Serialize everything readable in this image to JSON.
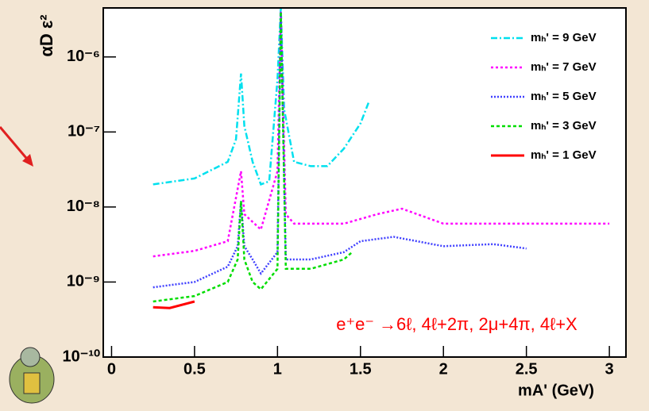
{
  "chart_data": {
    "type": "line",
    "ylabel": "αD ε²",
    "xlabel": "mA' (GeV)",
    "annotation": "e⁺e⁻ →6ℓ, 4ℓ+2π, 2μ+4π, 4ℓ+X",
    "ylog": true,
    "xlim": [
      -0.05,
      3.1
    ],
    "ylim": [
      1e-10,
      4.5e-06
    ],
    "xticks": [
      0,
      0.5,
      1,
      1.5,
      2,
      2.5,
      3
    ],
    "yticks": [
      {
        "value": 1e-10,
        "label": "10⁻¹⁰"
      },
      {
        "value": 1e-09,
        "label": "10⁻⁹"
      },
      {
        "value": 1e-08,
        "label": "10⁻⁸"
      },
      {
        "value": 1e-07,
        "label": "10⁻⁷"
      },
      {
        "value": 1e-06,
        "label": "10⁻⁶"
      }
    ],
    "legend": "upper right",
    "series": [
      {
        "name": "mₕ' = 9 GeV",
        "color": "#00e0ee",
        "dash": "8 3 2 3",
        "x": [
          0.25,
          0.5,
          0.7,
          0.75,
          0.78,
          0.8,
          0.85,
          0.9,
          0.95,
          1.0,
          1.02,
          1.04,
          1.1,
          1.2,
          1.3,
          1.4,
          1.5,
          1.55
        ],
        "values": [
          2e-08,
          2.4e-08,
          4e-08,
          8e-08,
          6e-07,
          1.2e-07,
          4e-08,
          2e-08,
          2.2e-08,
          5e-07,
          4.5e-06,
          2e-07,
          4e-08,
          3.5e-08,
          3.5e-08,
          6e-08,
          1.3e-07,
          2.5e-07
        ]
      },
      {
        "name": "mₕ' = 7 GeV",
        "color": "#ff00ff",
        "dash": "3 3",
        "x": [
          0.25,
          0.5,
          0.7,
          0.78,
          0.8,
          0.9,
          1.0,
          1.02,
          1.05,
          1.1,
          1.2,
          1.4,
          1.6,
          1.75,
          2.0,
          2.5,
          3.0
        ],
        "values": [
          2.2e-09,
          2.6e-09,
          3.5e-09,
          3e-08,
          8e-09,
          5e-09,
          3e-08,
          4e-06,
          8e-09,
          6e-09,
          6e-09,
          6e-09,
          8e-09,
          9.5e-09,
          6e-09,
          6e-09,
          6e-09
        ]
      },
      {
        "name": "mₕ' = 5 GeV",
        "color": "#4040ff",
        "dash": "2 2",
        "x": [
          0.25,
          0.5,
          0.7,
          0.76,
          0.78,
          0.8,
          0.85,
          0.9,
          1.0,
          1.02,
          1.05,
          1.2,
          1.4,
          1.5,
          1.7,
          1.9,
          2.0,
          2.3,
          2.5
        ],
        "values": [
          8.5e-10,
          1e-09,
          1.6e-09,
          3e-09,
          1.2e-08,
          3e-09,
          2e-09,
          1.3e-09,
          2.5e-09,
          4e-06,
          2e-09,
          2e-09,
          2.5e-09,
          3.5e-09,
          4e-09,
          3.3e-09,
          3e-09,
          3.2e-09,
          2.8e-09
        ]
      },
      {
        "name": "mₕ' = 3 GeV",
        "color": "#00dd00",
        "dash": "4 3",
        "x": [
          0.25,
          0.5,
          0.7,
          0.76,
          0.78,
          0.8,
          0.85,
          0.9,
          1.0,
          1.02,
          1.05,
          1.2,
          1.4,
          1.45
        ],
        "values": [
          5.5e-10,
          6.5e-10,
          1e-09,
          2e-09,
          1.2e-08,
          2e-09,
          1e-09,
          8e-10,
          1.5e-09,
          4e-06,
          1.5e-09,
          1.5e-09,
          2e-09,
          2.5e-09
        ]
      },
      {
        "name": "mₕ' = 1 GeV",
        "color": "#ff0000",
        "dash": "none",
        "x": [
          0.25,
          0.35,
          0.5
        ],
        "values": [
          4.6e-10,
          4.5e-10,
          5.5e-10
        ]
      }
    ]
  }
}
